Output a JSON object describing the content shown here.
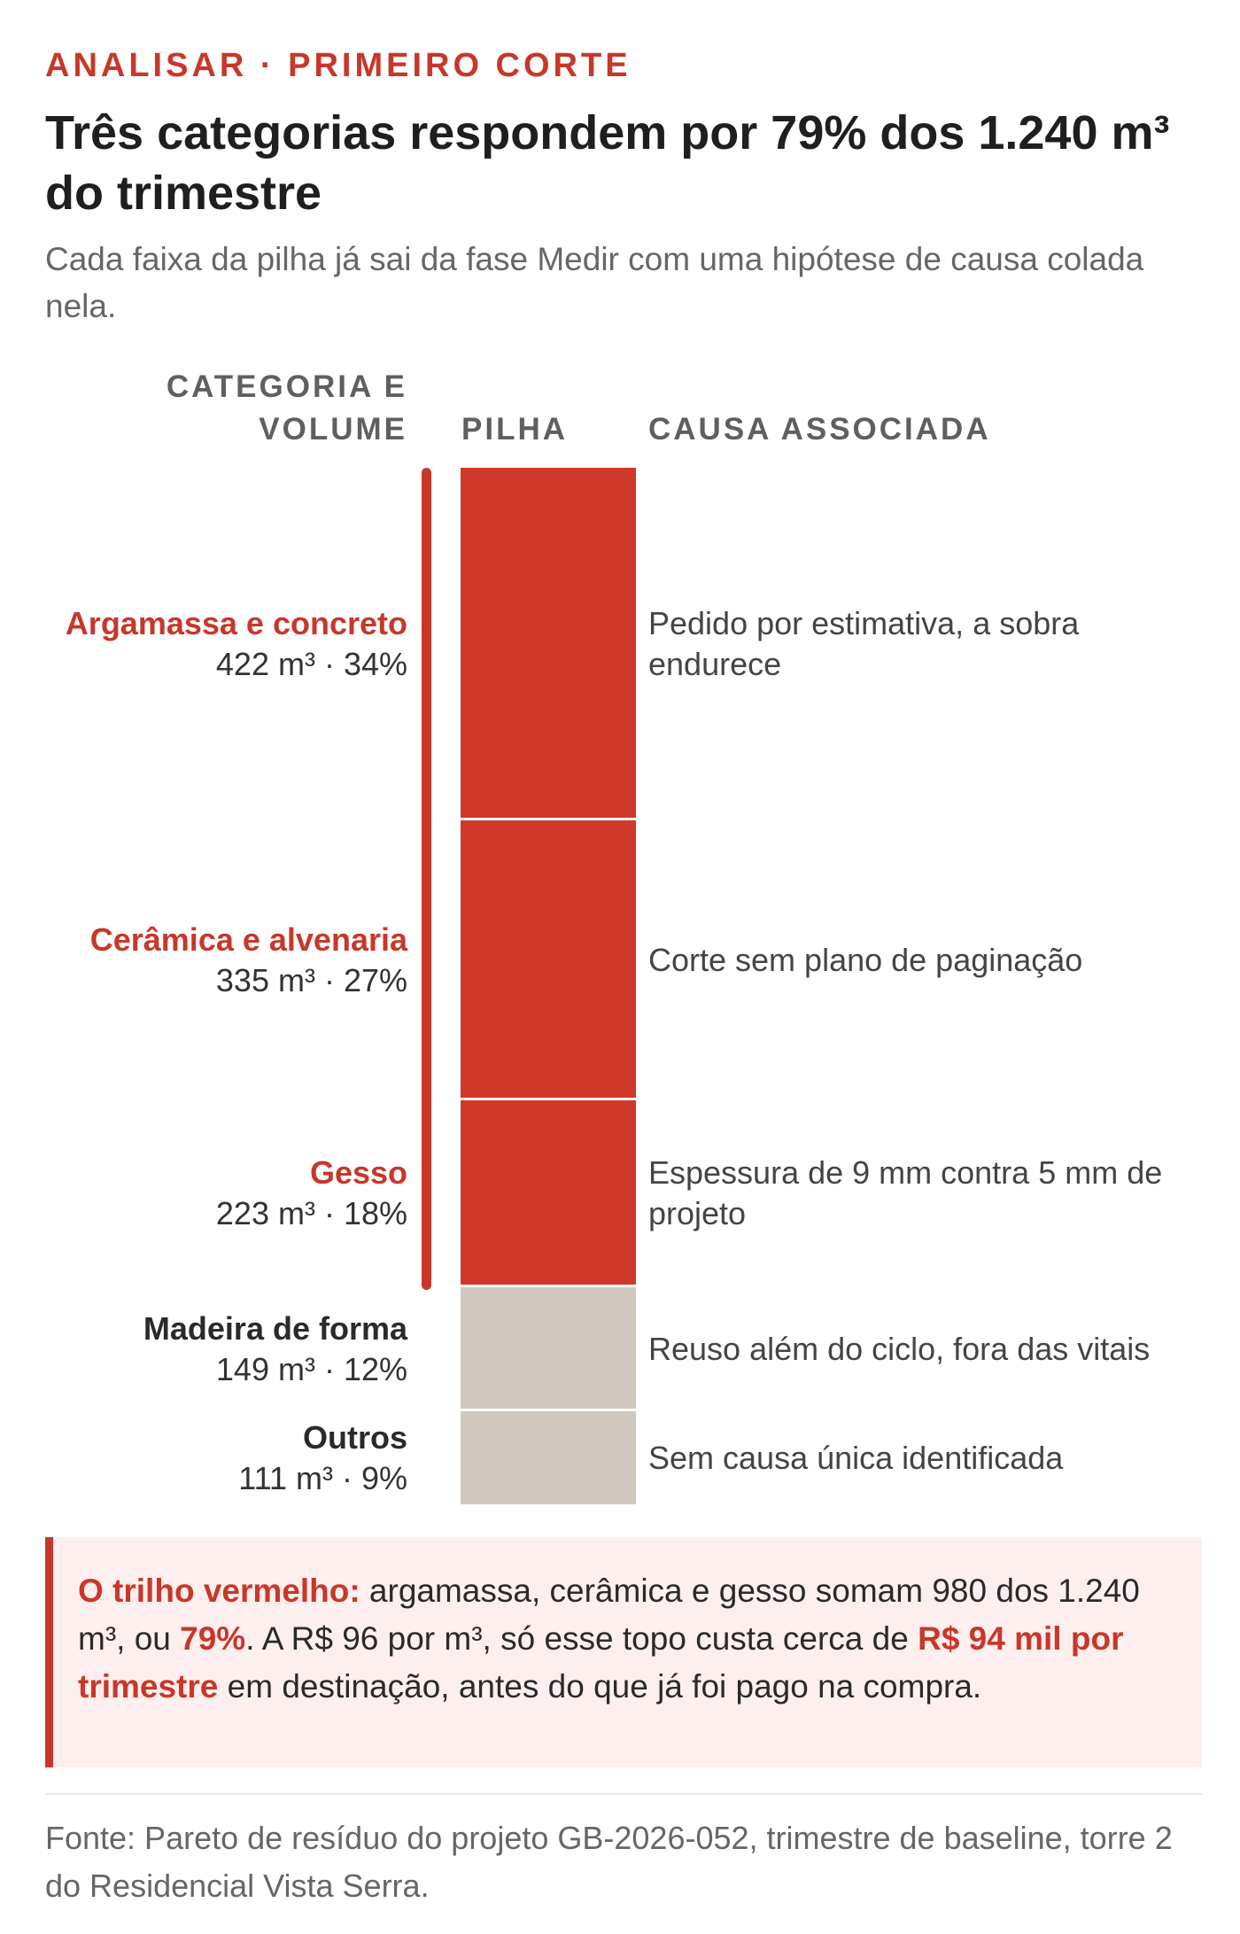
{
  "header": {
    "kicker": "ANALISAR · PRIMEIRO CORTE",
    "title": "Três categorias respondem por 79% dos 1.240 m³ do trimestre",
    "subtitle": "Cada faixa da pilha já sai da fase Medir com uma hipótese de causa colada nela."
  },
  "columns": {
    "category": "CATEGORIA E VOLUME",
    "stack": "PILHA",
    "cause": "CAUSA ASSOCIADA"
  },
  "chart_data": {
    "type": "bar",
    "stacked": true,
    "unit": "m³",
    "total": 1240,
    "highlight_share_pct": 79,
    "colors": {
      "highlight": "#d0382a",
      "rest": "#d0c8bf"
    },
    "segments": [
      {
        "name": "Argamassa e concreto",
        "value": 422,
        "pct": 34,
        "value_label": "422 m³ · 34%",
        "cause": "Pedido por estimativa, a sobra endurece",
        "highlight": true
      },
      {
        "name": "Cerâmica e alvenaria",
        "value": 335,
        "pct": 27,
        "value_label": "335 m³ · 27%",
        "cause": "Corte sem plano de paginação",
        "highlight": true
      },
      {
        "name": "Gesso",
        "value": 223,
        "pct": 18,
        "value_label": "223 m³ · 18%",
        "cause": "Espessura de 9 mm contra 5 mm de projeto",
        "highlight": true
      },
      {
        "name": "Madeira de forma",
        "value": 149,
        "pct": 12,
        "value_label": "149 m³ · 12%",
        "cause": "Reuso além do ciclo, fora das vitais",
        "highlight": false
      },
      {
        "name": "Outros",
        "value": 111,
        "pct": 9,
        "value_label": "111 m³ · 9%",
        "cause": "Sem causa única identificada",
        "highlight": false
      }
    ]
  },
  "callout": {
    "lead": "O trilho vermelho:",
    "text1": " argamassa, cerâmica e gesso somam 980 dos 1.240 m³, ou ",
    "pct": "79%",
    "text2": ". A R$ 96 por m³, só esse topo custa cerca de ",
    "cost": "R$ 94 mil por trimestre",
    "text3": " em destinação, antes do que já foi pago na compra."
  },
  "source": "Fonte: Pareto de resíduo do projeto GB-2026-052, trimestre de baseline, torre 2 do Residencial Vista Serra."
}
